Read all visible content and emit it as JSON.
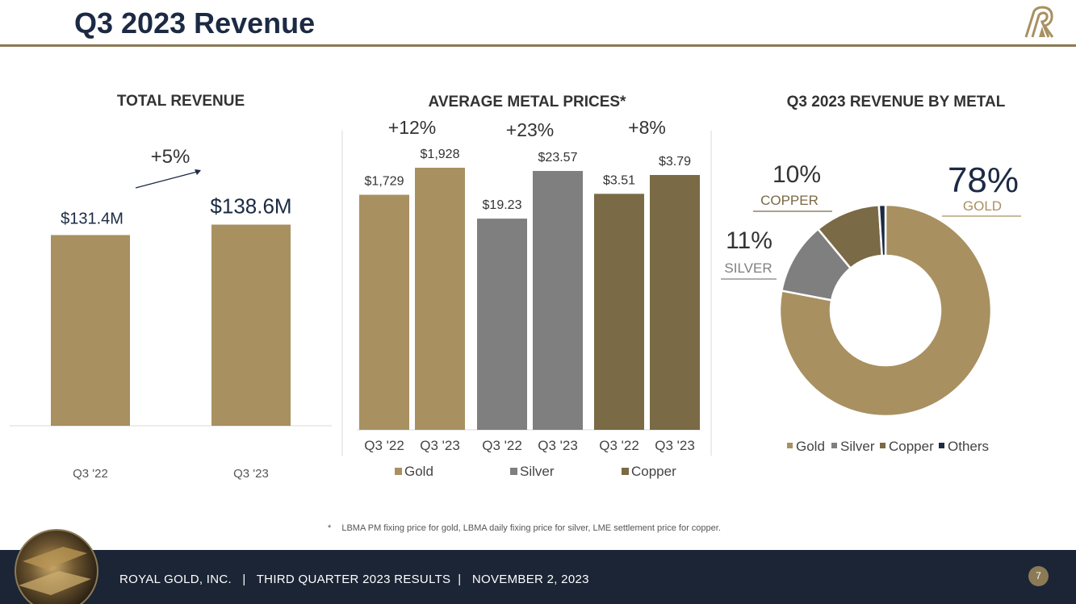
{
  "header": {
    "title": "Q3 2023 Revenue"
  },
  "colors": {
    "gold": "#a89060",
    "silver": "#7f7f7f",
    "copper": "#7a6a45",
    "others": "#1c2a44",
    "navy": "#1c2a44",
    "footer": "#1b2535"
  },
  "chart_data": [
    {
      "type": "bar",
      "title": "TOTAL REVENUE",
      "categories": [
        "Q3 '22",
        "Q3 '23"
      ],
      "values": [
        131.4,
        138.6
      ],
      "value_labels": [
        "$131.4M",
        "$138.6M"
      ],
      "annotation": "+5%",
      "ylim": [
        0,
        150
      ]
    },
    {
      "type": "bar",
      "title": "AVERAGE METAL PRICES*",
      "categories": [
        "Q3 '22",
        "Q3 '23",
        "Q3 '22",
        "Q3 '23",
        "Q3 '22",
        "Q3 '23"
      ],
      "groups": [
        {
          "name": "Gold",
          "values": [
            1729,
            1928
          ],
          "value_labels": [
            "$1,729",
            "$1,928"
          ],
          "change": "+12%"
        },
        {
          "name": "Silver",
          "values": [
            19.23,
            23.57
          ],
          "value_labels": [
            "$19.23",
            "$23.57"
          ],
          "change": "+23%"
        },
        {
          "name": "Copper",
          "values": [
            3.51,
            3.79
          ],
          "value_labels": [
            "$3.51",
            "$3.79"
          ],
          "change": "+8%"
        }
      ],
      "legend": [
        "Gold",
        "Silver",
        "Copper"
      ]
    },
    {
      "type": "pie",
      "title": "Q3 2023 REVENUE BY METAL",
      "labels": [
        "Gold",
        "Silver",
        "Copper",
        "Others"
      ],
      "values": [
        78,
        11,
        10,
        1
      ],
      "callouts": [
        {
          "pct": "78%",
          "label": "GOLD"
        },
        {
          "pct": "11%",
          "label": "SILVER"
        },
        {
          "pct": "10%",
          "label": "COPPER"
        }
      ],
      "legend": [
        "Gold",
        "Silver",
        "Copper",
        "Others"
      ]
    }
  ],
  "footnote": {
    "marker": "*",
    "text": "LBMA PM fixing price for gold, LBMA daily fixing price for silver, LME settlement price for copper."
  },
  "footer": {
    "text": "ROYAL GOLD, INC.   |   THIRD QUARTER 2023 RESULTS  |   NOVEMBER 2, 2023",
    "page_number": "7"
  }
}
